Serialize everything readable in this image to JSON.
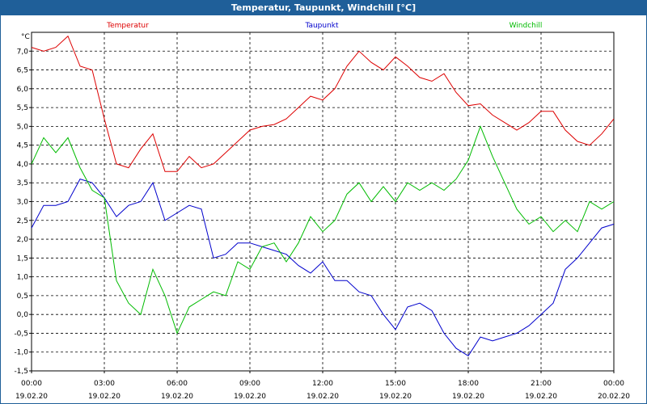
{
  "window": {
    "title": "Temperatur, Taupunkt, Windchill [°C]"
  },
  "chart_data": {
    "type": "line",
    "title": "Temperatur, Taupunkt, Windchill [°C]",
    "ylabel": "°C",
    "ylim": [
      -1.5,
      7.5
    ],
    "yticks": [
      "-1,5",
      "-1,0",
      "-0,5",
      "0,0",
      "0,5",
      "1,0",
      "1,5",
      "2,0",
      "2,5",
      "3,0",
      "3,5",
      "4,0",
      "4,5",
      "5,0",
      "5,5",
      "6,0",
      "6,5",
      "7,0"
    ],
    "xlim": [
      0,
      24
    ],
    "xticks": [
      {
        "time": "00:00",
        "date": "19.02.20"
      },
      {
        "time": "03:00",
        "date": "19.02.20"
      },
      {
        "time": "06:00",
        "date": "19.02.20"
      },
      {
        "time": "09:00",
        "date": "19.02.20"
      },
      {
        "time": "12:00",
        "date": "19.02.20"
      },
      {
        "time": "15:00",
        "date": "19.02.20"
      },
      {
        "time": "18:00",
        "date": "19.02.20"
      },
      {
        "time": "21:00",
        "date": "19.02.20"
      },
      {
        "time": "00:00",
        "date": "20.02.20"
      }
    ],
    "grid": true,
    "legend_placement": "top",
    "series": [
      {
        "name": "Temperatur",
        "color": "#dd0000",
        "x": [
          0,
          0.5,
          1,
          1.5,
          2,
          2.5,
          3,
          3.5,
          4,
          4.5,
          5,
          5.5,
          6,
          6.5,
          7,
          7.5,
          8,
          8.5,
          9,
          9.5,
          10,
          10.5,
          11,
          11.5,
          12,
          12.5,
          13,
          13.5,
          14,
          14.5,
          15,
          15.5,
          16,
          16.5,
          17,
          17.5,
          18,
          18.5,
          19,
          19.5,
          20,
          20.5,
          21,
          21.5,
          22,
          22.5,
          23,
          23.5,
          24
        ],
        "values": [
          7.1,
          7.0,
          7.1,
          7.4,
          6.6,
          6.5,
          5.2,
          4.0,
          3.9,
          4.4,
          4.8,
          3.8,
          3.8,
          4.2,
          3.9,
          4.0,
          4.3,
          4.6,
          4.9,
          5.0,
          5.05,
          5.2,
          5.5,
          5.8,
          5.7,
          6.0,
          6.6,
          7.0,
          6.7,
          6.5,
          6.85,
          6.6,
          6.3,
          6.2,
          6.4,
          5.9,
          5.55,
          5.6,
          5.3,
          5.1,
          4.9,
          5.1,
          5.4,
          5.4,
          4.9,
          4.6,
          4.5,
          4.8,
          5.2
        ]
      },
      {
        "name": "Taupunkt",
        "color": "#0000cc",
        "x": [
          0,
          0.5,
          1,
          1.5,
          2,
          2.5,
          3,
          3.5,
          4,
          4.5,
          5,
          5.5,
          6,
          6.5,
          7,
          7.5,
          8,
          8.5,
          9,
          9.5,
          10,
          10.5,
          11,
          11.5,
          12,
          12.5,
          13,
          13.5,
          14,
          14.5,
          15,
          15.5,
          16,
          16.5,
          17,
          17.5,
          18,
          18.5,
          19,
          19.5,
          20,
          20.5,
          21,
          21.5,
          22,
          22.5,
          23,
          23.5,
          24
        ],
        "values": [
          2.3,
          2.9,
          2.9,
          3.0,
          3.6,
          3.5,
          3.1,
          2.6,
          2.9,
          3.0,
          3.5,
          2.5,
          2.7,
          2.9,
          2.8,
          1.5,
          1.6,
          1.9,
          1.9,
          1.8,
          1.7,
          1.6,
          1.3,
          1.1,
          1.4,
          0.9,
          0.9,
          0.6,
          0.5,
          0.0,
          -0.4,
          0.2,
          0.3,
          0.1,
          -0.5,
          -0.9,
          -1.1,
          -0.6,
          -0.7,
          -0.6,
          -0.5,
          -0.3,
          0.0,
          0.3,
          1.2,
          1.5,
          1.9,
          2.3,
          2.4
        ]
      },
      {
        "name": "Windchill",
        "color": "#00bb00",
        "x": [
          0,
          0.5,
          1,
          1.5,
          2,
          2.5,
          3,
          3.5,
          4,
          4.5,
          5,
          5.5,
          6,
          6.5,
          7,
          7.5,
          8,
          8.5,
          9,
          9.5,
          10,
          10.5,
          11,
          11.5,
          12,
          12.5,
          13,
          13.5,
          14,
          14.5,
          15,
          15.5,
          16,
          16.5,
          17,
          17.5,
          18,
          18.5,
          19,
          19.5,
          20,
          20.5,
          21,
          21.5,
          22,
          22.5,
          23,
          23.5,
          24
        ],
        "values": [
          4.0,
          4.7,
          4.3,
          4.7,
          3.9,
          3.3,
          3.1,
          0.9,
          0.3,
          0.0,
          1.2,
          0.5,
          -0.5,
          0.2,
          0.4,
          0.6,
          0.5,
          1.4,
          1.2,
          1.8,
          1.9,
          1.4,
          1.9,
          2.6,
          2.2,
          2.5,
          3.2,
          3.5,
          3.0,
          3.4,
          3.0,
          3.5,
          3.3,
          3.5,
          3.3,
          3.6,
          4.1,
          5.0,
          4.2,
          3.5,
          2.8,
          2.4,
          2.6,
          2.2,
          2.5,
          2.2,
          3.0,
          2.8,
          3.0
        ]
      }
    ]
  }
}
